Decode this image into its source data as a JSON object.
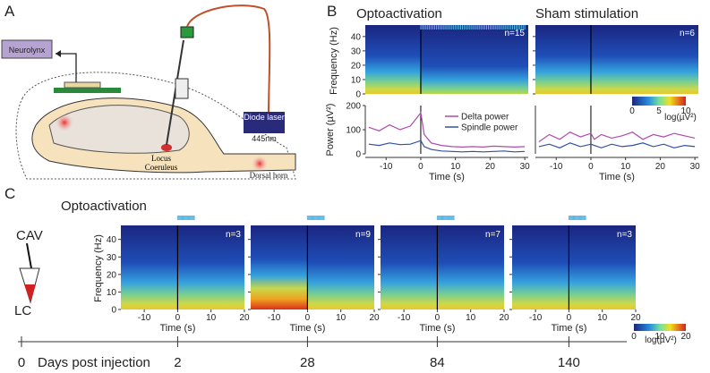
{
  "panel_a": {
    "label": "A",
    "recorder": "Neurolynx",
    "laser": "Diode laser",
    "wavelength": "445nm",
    "region": "Locus Coeruleus",
    "target": "Dorsal horn"
  },
  "panel_b": {
    "label": "B",
    "spectrograms": [
      {
        "title": "Optoactivation",
        "n": "n=15"
      },
      {
        "title": "Sham stimulation",
        "n": "n=6"
      }
    ],
    "stimulus_s": [
      0,
      30
    ],
    "freq_axis": {
      "label": "Frequency (Hz)",
      "ticks": [
        0,
        10,
        20,
        30,
        40
      ],
      "lim": [
        0,
        48
      ]
    },
    "colorbar": {
      "ticks": [
        0,
        5,
        10
      ],
      "label": "log(µV²)"
    },
    "power": {
      "ylabel": "Power (µV²)",
      "ylim": [
        0,
        200
      ],
      "yticks": [
        0,
        100,
        200
      ],
      "xlabel": "Time (s)",
      "xlim": [
        -16,
        31
      ],
      "xticks": [
        -10,
        0,
        10,
        20,
        30
      ],
      "series": [
        {
          "name": "Delta power",
          "color": "#b04ab0"
        },
        {
          "name": "Spindle power",
          "color": "#3050a0"
        }
      ],
      "x": [
        -15,
        -12,
        -9,
        -6,
        -3,
        0,
        1,
        3,
        6,
        9,
        12,
        15,
        18,
        21,
        24,
        27,
        30
      ],
      "plots": [
        [
          [
            110,
            95,
            120,
            100,
            115,
            170,
            80,
            45,
            35,
            30,
            28,
            30,
            28,
            32,
            30,
            28,
            30
          ],
          [
            40,
            35,
            45,
            38,
            40,
            55,
            30,
            18,
            12,
            10,
            8,
            10,
            8,
            10,
            12,
            8,
            10
          ]
        ],
        [
          [
            50,
            80,
            60,
            90,
            70,
            85,
            60,
            80,
            65,
            75,
            90,
            60,
            80,
            70,
            85,
            75,
            65
          ],
          [
            30,
            40,
            25,
            45,
            30,
            40,
            35,
            25,
            40,
            30,
            35,
            45,
            30,
            40,
            25,
            35,
            30
          ]
        ]
      ]
    }
  },
  "panel_c": {
    "label": "C",
    "title": "Optoactivation",
    "vessel": "CAV",
    "region": "LC",
    "stimulus_s": [
      0,
      5
    ],
    "spectrograms": [
      {
        "n": "n=3",
        "day": "2"
      },
      {
        "n": "n=9",
        "day": "28"
      },
      {
        "n": "n=7",
        "day": "84"
      },
      {
        "n": "n=3",
        "day": "140"
      }
    ],
    "freq_axis": {
      "label": "Frequency (Hz)",
      "ticks": [
        0,
        10,
        20,
        30,
        40
      ],
      "lim": [
        0,
        48
      ]
    },
    "xlabel": "Time (s)",
    "xlim": [
      -17,
      20
    ],
    "xticks": [
      -10,
      0,
      10,
      20
    ],
    "colorbar": {
      "ticks": [
        0,
        10,
        20
      ],
      "label": "log(µV²)"
    },
    "timeline": {
      "start": "0",
      "label": "Days post injection"
    }
  }
}
